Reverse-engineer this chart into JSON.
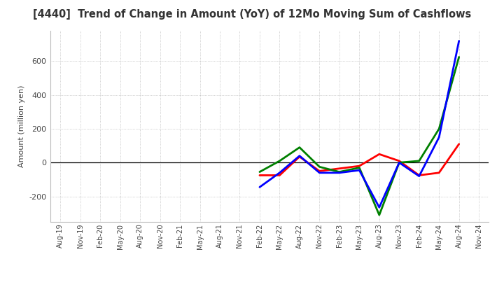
{
  "title": "[4440]  Trend of Change in Amount (YoY) of 12Mo Moving Sum of Cashflows",
  "ylabel": "Amount (million yen)",
  "background_color": "#ffffff",
  "grid_color": "#aaaaaa",
  "title_color": "#333333",
  "x_labels": [
    "Aug-19",
    "Nov-19",
    "Feb-20",
    "May-20",
    "Aug-20",
    "Nov-20",
    "Feb-21",
    "May-21",
    "Aug-21",
    "Nov-21",
    "Feb-22",
    "May-22",
    "Aug-22",
    "Nov-22",
    "Feb-23",
    "May-23",
    "Aug-23",
    "Nov-23",
    "Feb-24",
    "May-24",
    "Aug-24",
    "Nov-24"
  ],
  "operating_cashflow": [
    null,
    null,
    null,
    null,
    null,
    null,
    null,
    null,
    null,
    null,
    -75,
    -75,
    35,
    -50,
    -35,
    -20,
    50,
    10,
    -75,
    -60,
    110,
    null
  ],
  "investing_cashflow": [
    null,
    null,
    null,
    null,
    null,
    null,
    null,
    null,
    null,
    null,
    -55,
    10,
    90,
    -25,
    -55,
    -30,
    -310,
    0,
    10,
    200,
    625,
    null
  ],
  "free_cashflow": [
    null,
    null,
    null,
    null,
    null,
    null,
    null,
    null,
    null,
    null,
    -145,
    -60,
    40,
    -60,
    -60,
    -45,
    -265,
    0,
    -80,
    150,
    720,
    null
  ],
  "ylim": [
    -350,
    780
  ],
  "yticks": [
    -200,
    0,
    200,
    400,
    600
  ],
  "operating_color": "#ff0000",
  "investing_color": "#008000",
  "free_color": "#0000ff",
  "linewidth": 2.0
}
